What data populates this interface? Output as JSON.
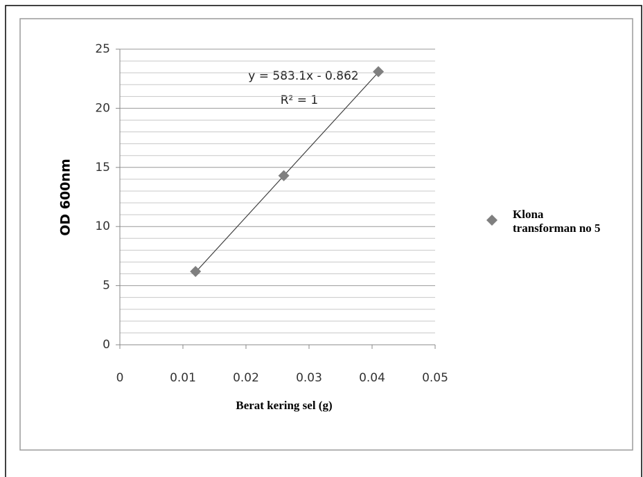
{
  "chart_data": {
    "type": "scatter",
    "x_label": "Berat kering sel (g)",
    "y_label": "OD 600nm",
    "series": [
      {
        "name": "Klona transforman no 5",
        "color": "#7f7f7f",
        "x": [
          0.012,
          0.026,
          0.041
        ],
        "values": [
          6.2,
          14.3,
          23.1
        ]
      }
    ],
    "trendline": {
      "slope": 583.1,
      "intercept": -0.862,
      "color": "#404040"
    },
    "annotations": [
      "y = 583.1x - 0.862",
      "R² = 1"
    ],
    "xlim": [
      0,
      0.05
    ],
    "xticks": [
      0,
      0.01,
      0.02,
      0.03,
      0.04,
      0.05
    ],
    "ylim": [
      0,
      25
    ],
    "yticks": [
      0,
      5,
      10,
      15,
      20,
      25
    ],
    "grid": true,
    "legend": "right"
  }
}
